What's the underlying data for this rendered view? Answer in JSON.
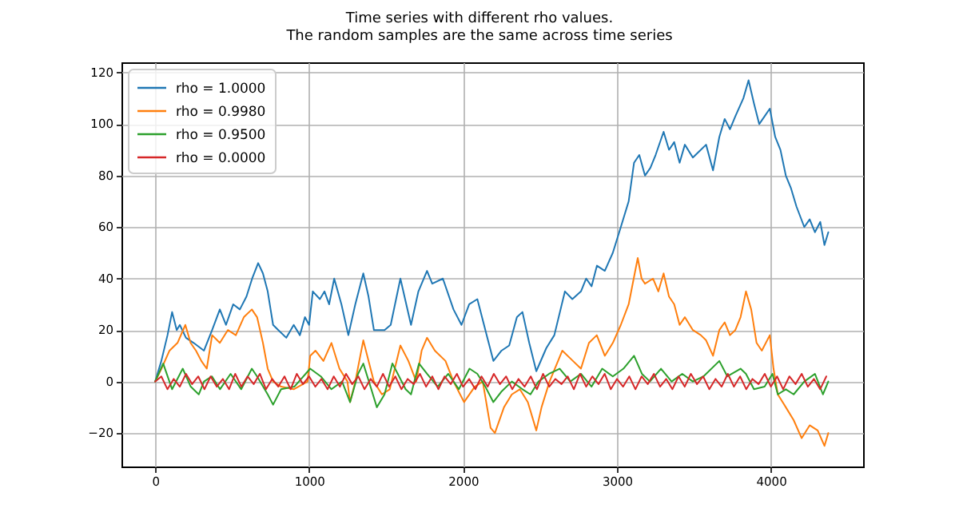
{
  "chart_data": {
    "type": "line",
    "title": "Time series with different rho values.\nThe random samples are the same across time series",
    "xlim": [
      -219,
      4599
    ],
    "ylim": [
      -33,
      124
    ],
    "xticks": [
      0,
      1000,
      2000,
      3000,
      4000
    ],
    "yticks": [
      -20,
      0,
      20,
      40,
      60,
      80,
      100,
      120
    ],
    "grid": true,
    "legend": "top left",
    "series": [
      {
        "name": "rho = 1.0000",
        "color": "#1f77b4",
        "x": [
          0,
          40,
          80,
          110,
          140,
          160,
          200,
          250,
          317,
          370,
          420,
          460,
          507,
          550,
          593,
          630,
          669,
          700,
          731,
          766,
          800,
          852,
          900,
          940,
          973,
          1000,
          1024,
          1070,
          1100,
          1130,
          1163,
          1210,
          1255,
          1300,
          1352,
          1386,
          1421,
          1490,
          1530,
          1593,
          1662,
          1710,
          1766,
          1800,
          1869,
          1938,
          1990,
          2040,
          2093,
          2145,
          2197,
          2250,
          2300,
          2350,
          2386,
          2430,
          2476,
          2541,
          2593,
          2662,
          2710,
          2766,
          2800,
          2835,
          2870,
          2921,
          2973,
          3025,
          3076,
          3111,
          3145,
          3182,
          3217,
          3251,
          3303,
          3338,
          3372,
          3407,
          3441,
          3493,
          3545,
          3579,
          3624,
          3665,
          3700,
          3734,
          3769,
          3821,
          3855,
          3890,
          3924,
          3959,
          3993,
          4028,
          4062,
          4097,
          4131,
          4166,
          4217,
          4252,
          4286,
          4321,
          4348,
          4373
        ],
        "values": [
          0,
          8,
          18,
          27,
          20,
          22,
          17,
          15,
          12,
          20,
          28,
          22,
          30,
          28,
          33,
          40,
          46,
          42,
          35,
          22,
          20,
          17,
          22,
          18,
          25,
          22,
          35,
          32,
          35,
          30,
          40,
          30,
          18,
          30,
          42,
          33,
          20,
          20,
          22,
          40,
          22,
          35,
          43,
          38,
          40,
          28,
          22,
          30,
          32,
          20,
          8,
          12,
          14,
          25,
          27,
          15,
          4,
          13,
          18,
          35,
          32,
          35,
          40,
          37,
          45,
          43,
          50,
          60,
          70,
          85,
          88,
          80,
          83,
          88,
          97,
          90,
          93,
          85,
          92,
          87,
          90,
          92,
          82,
          95,
          102,
          98,
          103,
          110,
          117,
          108,
          100,
          103,
          106,
          95,
          90,
          80,
          75,
          68,
          60,
          63,
          58,
          62,
          53,
          58
        ]
      },
      {
        "name": "rho = 0.9980",
        "color": "#ff7f0e",
        "x": [
          0,
          41,
          93,
          145,
          196,
          230,
          265,
          300,
          335,
          370,
          420,
          472,
          524,
          576,
          628,
          662,
          700,
          731,
          766,
          818,
          900,
          990,
          1007,
          1041,
          1093,
          1145,
          1197,
          1249,
          1266,
          1300,
          1352,
          1386,
          1421,
          1473,
          1524,
          1593,
          1645,
          1696,
          1731,
          1766,
          1817,
          1886,
          1938,
          2007,
          2076,
          2128,
          2179,
          2207,
          2266,
          2317,
          2369,
          2421,
          2476,
          2510,
          2562,
          2645,
          2714,
          2766,
          2818,
          2869,
          2921,
          2973,
          3025,
          3076,
          3135,
          3160,
          3182,
          3234,
          3269,
          3303,
          3338,
          3372,
          3407,
          3441,
          3493,
          3545,
          3579,
          3624,
          3665,
          3700,
          3734,
          3769,
          3803,
          3838,
          3872,
          3907,
          3941,
          3993,
          4017,
          4045,
          4097,
          4148,
          4200,
          4252,
          4304,
          4348,
          4373
        ],
        "values": [
          0,
          5,
          12,
          15,
          22,
          15,
          12,
          8,
          5,
          18,
          15,
          20,
          18,
          25,
          28,
          25,
          15,
          5,
          0,
          -2,
          -3,
          0,
          10,
          12,
          8,
          15,
          5,
          0,
          -8,
          0,
          16,
          8,
          0,
          -5,
          -3,
          14,
          8,
          0,
          12,
          17,
          12,
          8,
          0,
          -8,
          -2,
          0,
          -18,
          -20,
          -10,
          -5,
          -3,
          -8,
          -19,
          -10,
          0,
          12,
          8,
          5,
          15,
          18,
          10,
          15,
          22,
          30,
          48,
          40,
          38,
          40,
          35,
          42,
          33,
          30,
          22,
          25,
          20,
          18,
          16,
          10,
          20,
          23,
          18,
          20,
          25,
          35,
          28,
          15,
          12,
          18,
          5,
          -5,
          -10,
          -15,
          -22,
          -17,
          -19,
          -25,
          -20
        ]
      },
      {
        "name": "rho = 0.9500",
        "color": "#2ca02c",
        "x": [
          0,
          52,
          110,
          179,
          231,
          283,
          317,
          369,
          421,
          490,
          559,
          628,
          662,
          731,
          766,
          818,
          904,
          1007,
          1076,
          1145,
          1214,
          1266,
          1318,
          1352,
          1404,
          1440,
          1490,
          1541,
          1576,
          1627,
          1662,
          1714,
          1766,
          1835,
          1904,
          1973,
          2042,
          2093,
          2145,
          2197,
          2248,
          2317,
          2386,
          2438,
          2490,
          2559,
          2628,
          2697,
          2766,
          2835,
          2904,
          2973,
          3042,
          3111,
          3162,
          3214,
          3286,
          3355,
          3424,
          3493,
          3562,
          3665,
          3717,
          3803,
          3838,
          3890,
          3959,
          4010,
          4045,
          4097,
          4148,
          4217,
          4286,
          4338,
          4373
        ],
        "values": [
          0,
          7,
          -3,
          5,
          -2,
          -5,
          0,
          2,
          -3,
          3,
          -3,
          5,
          2,
          -5,
          -9,
          -3,
          -2,
          5,
          2,
          -3,
          0,
          -8,
          3,
          7,
          -3,
          -10,
          -5,
          7,
          3,
          -3,
          -5,
          7,
          3,
          -2,
          3,
          -3,
          5,
          3,
          -2,
          -8,
          -4,
          0,
          -3,
          -5,
          0,
          3,
          5,
          0,
          3,
          -2,
          5,
          2,
          5,
          10,
          3,
          0,
          5,
          0,
          3,
          0,
          2,
          8,
          2,
          5,
          3,
          -3,
          -2,
          3,
          -5,
          -3,
          -5,
          0,
          3,
          -5,
          0
        ]
      },
      {
        "name": "rho = 0.0000",
        "color": "#d62728",
        "x": [
          0,
          40,
          80,
          120,
          160,
          200,
          240,
          280,
          320,
          360,
          400,
          440,
          480,
          520,
          560,
          600,
          640,
          680,
          720,
          760,
          800,
          840,
          880,
          920,
          960,
          1000,
          1040,
          1080,
          1120,
          1160,
          1200,
          1240,
          1280,
          1320,
          1360,
          1400,
          1440,
          1480,
          1520,
          1560,
          1600,
          1640,
          1680,
          1720,
          1760,
          1800,
          1840,
          1880,
          1920,
          1960,
          2000,
          2040,
          2080,
          2120,
          2160,
          2200,
          2240,
          2280,
          2320,
          2360,
          2400,
          2440,
          2480,
          2520,
          2560,
          2600,
          2640,
          2680,
          2720,
          2760,
          2800,
          2840,
          2880,
          2920,
          2960,
          3000,
          3040,
          3080,
          3120,
          3160,
          3200,
          3240,
          3280,
          3320,
          3360,
          3400,
          3440,
          3480,
          3520,
          3560,
          3600,
          3640,
          3680,
          3720,
          3760,
          3800,
          3840,
          3880,
          3920,
          3960,
          4000,
          4040,
          4080,
          4120,
          4160,
          4200,
          4240,
          4280,
          4320,
          4360
        ],
        "values": [
          0,
          2,
          -3,
          1,
          -2,
          3,
          -1,
          2,
          -3,
          2,
          -2,
          1,
          -3,
          3,
          -2,
          2,
          -1,
          3,
          -3,
          1,
          -2,
          2,
          -3,
          3,
          -1,
          2,
          -2,
          1,
          -3,
          2,
          -2,
          3,
          -1,
          2,
          -3,
          1,
          -2,
          3,
          -2,
          2,
          -3,
          1,
          -1,
          3,
          -2,
          2,
          -3,
          2,
          -1,
          3,
          -2,
          1,
          -3,
          2,
          -2,
          3,
          -1,
          2,
          -3,
          1,
          -2,
          2,
          -3,
          3,
          -2,
          1,
          -1,
          2,
          -3,
          3,
          -2,
          2,
          -1,
          3,
          -3,
          1,
          -2,
          2,
          -3,
          2,
          -1,
          3,
          -2,
          1,
          -3,
          2,
          -2,
          3,
          -1,
          2,
          -3,
          1,
          -2,
          3,
          -2,
          2,
          -3,
          1,
          -1,
          3,
          -2,
          2,
          -3,
          2,
          -1,
          3,
          -2,
          1,
          -3,
          2
        ]
      }
    ]
  }
}
